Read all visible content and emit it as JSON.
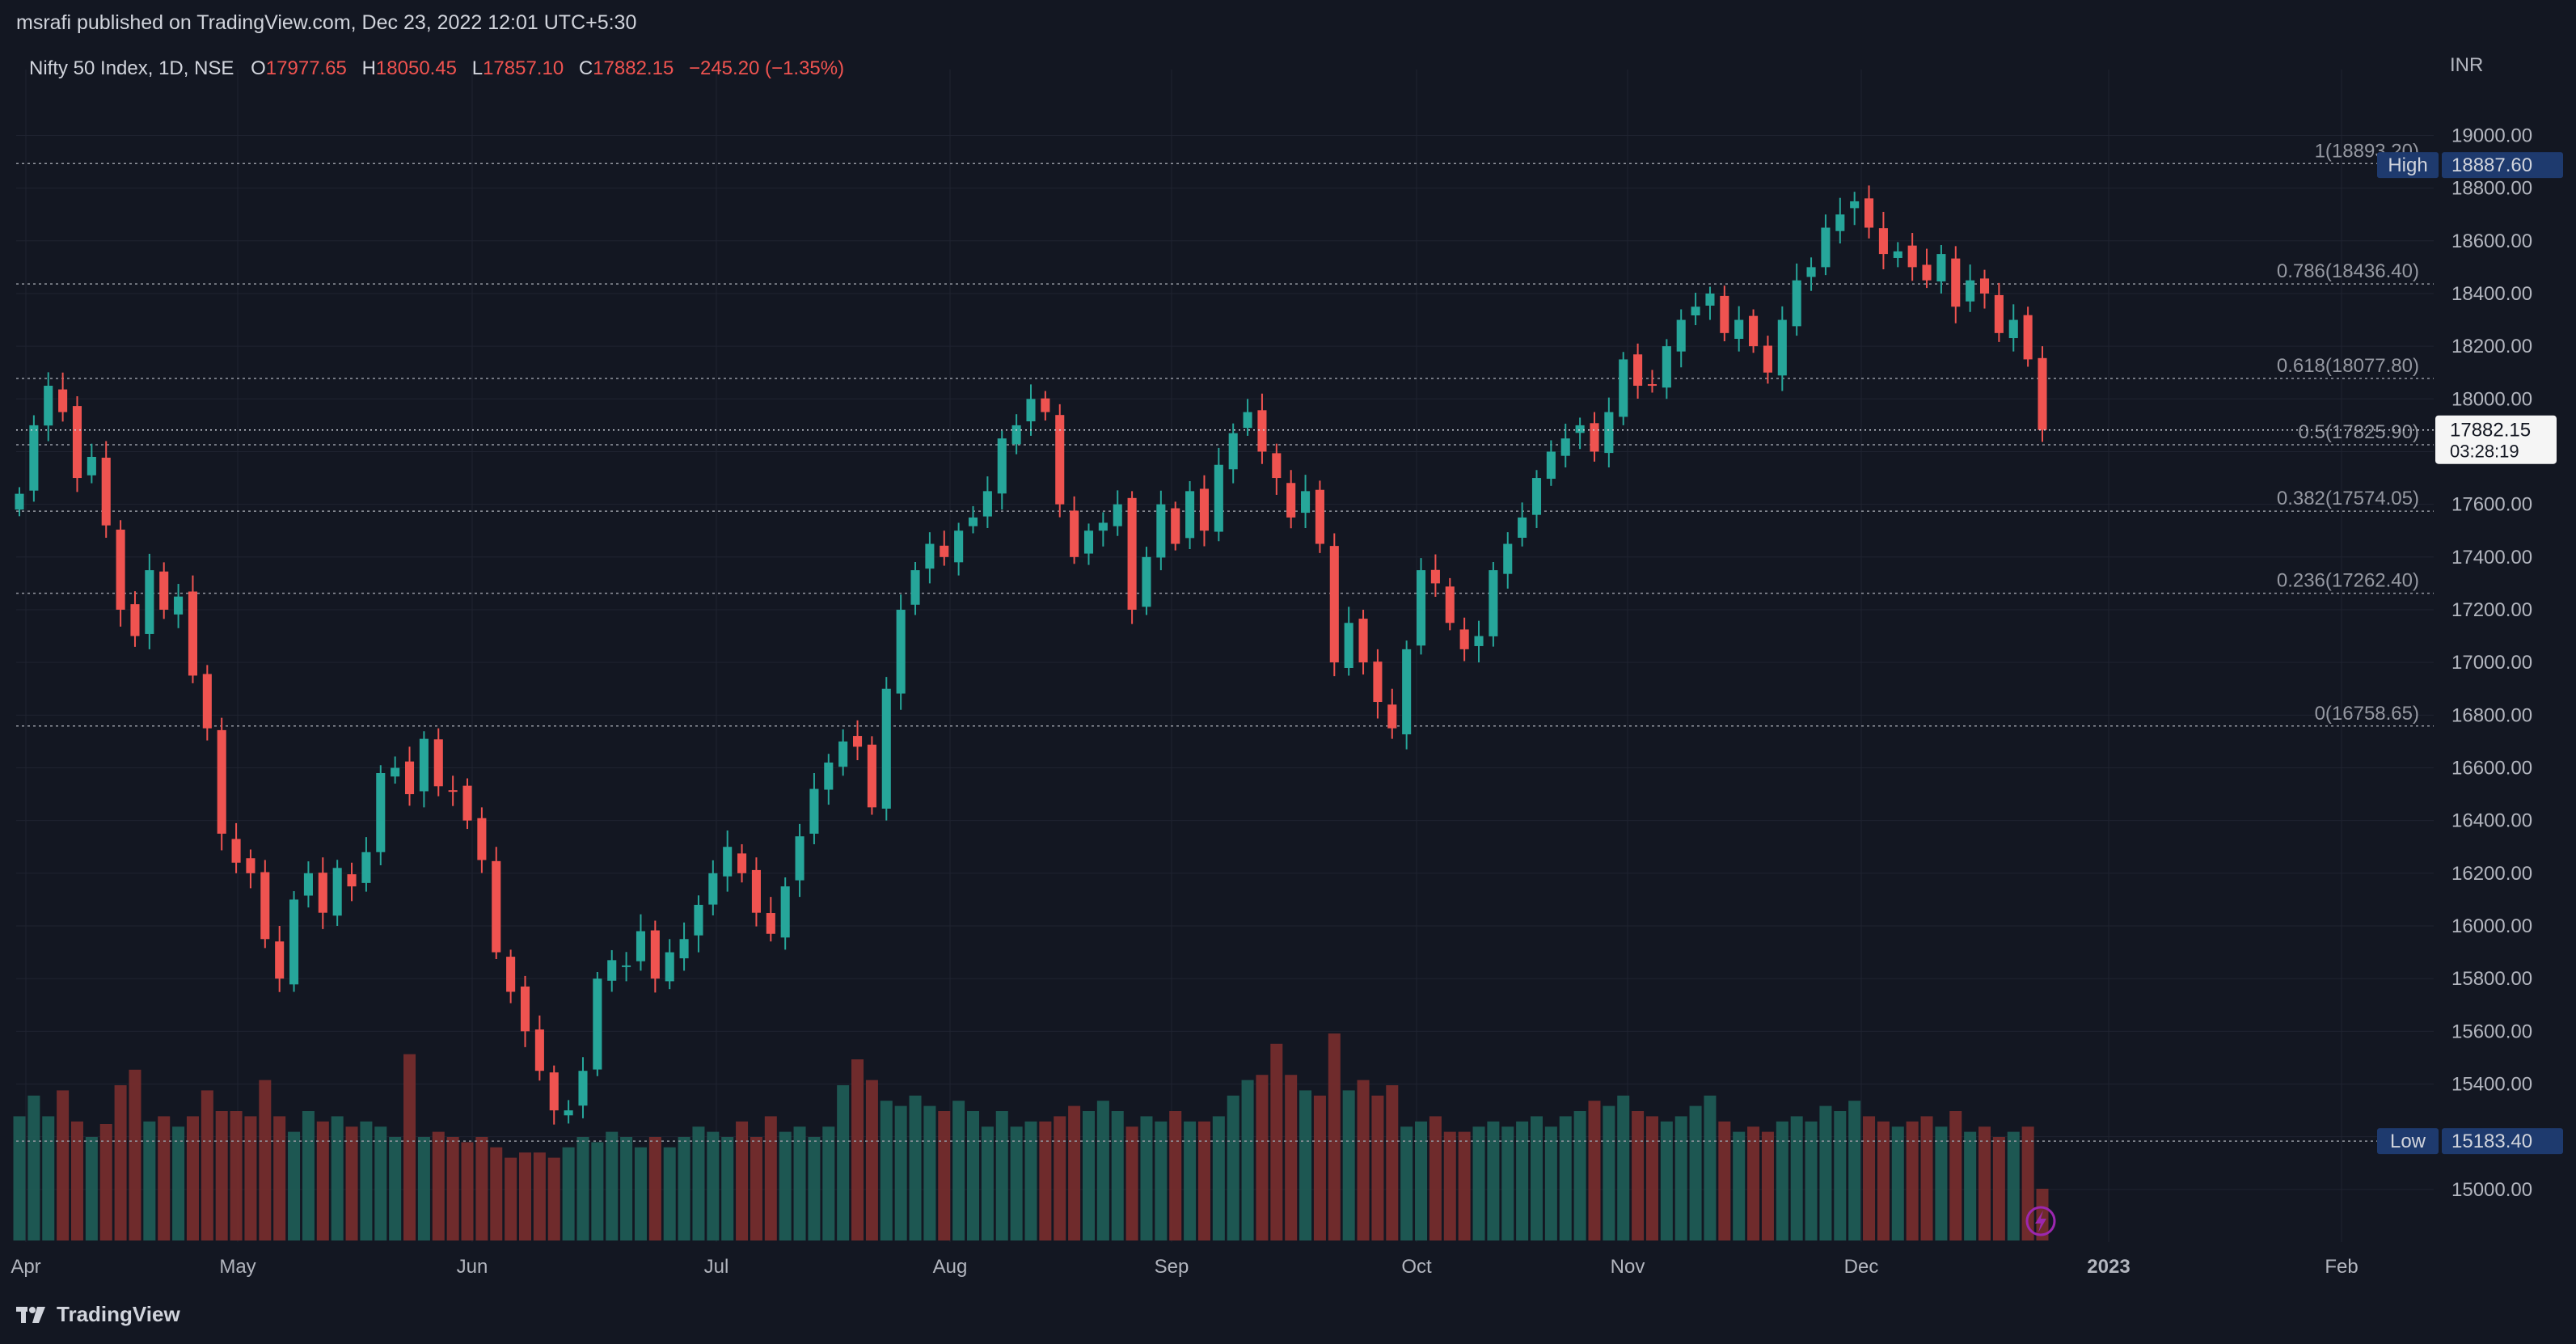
{
  "header": {
    "published_text": "msrafi published on TradingView.com, Dec 23, 2022 12:01 UTC+5:30"
  },
  "legend": {
    "symbol": "Nifty 50 Index, 1D, NSE",
    "o_label": "O",
    "o_value": "17977.65",
    "h_label": "H",
    "h_value": "18050.45",
    "l_label": "L",
    "l_value": "17857.10",
    "c_label": "C",
    "c_value": "17882.15",
    "change": "−245.20 (−1.35%)"
  },
  "currency": "INR",
  "footer": {
    "brand": "TradingView"
  },
  "colors": {
    "background": "#131722",
    "grid": "#1f2330",
    "up": "#26a69a",
    "down": "#ef5350",
    "text": "#d1d4dc",
    "axis_text": "#b2b5be",
    "fib_line": "#9598a1",
    "badge_blue": "#1e3a8a"
  },
  "chart_data": {
    "type": "candlestick",
    "title": "Nifty 50 Index, 1D, NSE",
    "y_axis": {
      "min": 14800,
      "max": 19250,
      "ticks": [
        "19000.00",
        "18800.00",
        "18600.00",
        "18400.00",
        "18200.00",
        "18000.00",
        "17800.00",
        "17600.00",
        "17400.00",
        "17200.00",
        "17000.00",
        "16800.00",
        "16600.00",
        "16400.00",
        "16200.00",
        "16000.00",
        "15800.00",
        "15600.00",
        "15400.00",
        "15200.00",
        "15000.00"
      ]
    },
    "x_axis": {
      "labels": [
        "Apr",
        "May",
        "Jun",
        "Jul",
        "Aug",
        "Sep",
        "Oct",
        "Nov",
        "Dec",
        "2023",
        "Feb"
      ]
    },
    "last_price": {
      "value": "17882.15",
      "countdown": "03:28:19"
    },
    "high_marker": {
      "label": "High",
      "value": "18887.60"
    },
    "low_marker": {
      "label": "Low",
      "value": "15183.40"
    },
    "fib_levels": [
      {
        "ratio": "1",
        "value": 18893.2,
        "text": "1(18893.20)"
      },
      {
        "ratio": "0.786",
        "value": 18436.4,
        "text": "0.786(18436.40)"
      },
      {
        "ratio": "0.618",
        "value": 18077.8,
        "text": "0.618(18077.80)"
      },
      {
        "ratio": "0.5",
        "value": 17825.9,
        "text": "0.5(17825.90)"
      },
      {
        "ratio": "0.382",
        "value": 17574.05,
        "text": "0.382(17574.05)"
      },
      {
        "ratio": "0.236",
        "value": 17262.4,
        "text": "0.236(17262.40)"
      },
      {
        "ratio": "0",
        "value": 16758.65,
        "text": "0(16758.65)"
      }
    ],
    "closes": [
      17640,
      17900,
      18050,
      17950,
      17700,
      17780,
      17520,
      17200,
      17100,
      17350,
      17200,
      17250,
      16950,
      16750,
      16350,
      16240,
      16200,
      15950,
      15800,
      16100,
      16200,
      16050,
      16220,
      16150,
      16280,
      16580,
      16600,
      16500,
      16710,
      16530,
      16510,
      16400,
      16250,
      15900,
      15750,
      15600,
      15450,
      15300,
      15300,
      15450,
      15800,
      15870,
      15850,
      15980,
      15800,
      15900,
      15950,
      16080,
      16200,
      16300,
      16200,
      16050,
      15970,
      16150,
      16340,
      16520,
      16620,
      16700,
      16680,
      16450,
      16900,
      17200,
      17350,
      17450,
      17400,
      17500,
      17550,
      17650,
      17850,
      17900,
      18000,
      17950,
      17600,
      17400,
      17500,
      17530,
      17600,
      17200,
      17400,
      17600,
      17450,
      17650,
      17500,
      17750,
      17870,
      17950,
      17800,
      17700,
      17550,
      17650,
      17450,
      17000,
      17150,
      17000,
      16850,
      16750,
      17050,
      17350,
      17300,
      17150,
      17050,
      17100,
      17350,
      17450,
      17550,
      17700,
      17800,
      17850,
      17900,
      17800,
      17950,
      18150,
      18050,
      18050,
      18200,
      18300,
      18350,
      18400,
      18250,
      18300,
      18200,
      18100,
      18300,
      18450,
      18500,
      18650,
      18700,
      18750,
      18650,
      18550,
      18560,
      18500,
      18450,
      18550,
      18350,
      18450,
      18400,
      18250,
      18300,
      18150,
      17882
    ],
    "volumes": [
      0.48,
      0.56,
      0.48,
      0.58,
      0.46,
      0.4,
      0.45,
      0.6,
      0.66,
      0.46,
      0.48,
      0.44,
      0.48,
      0.58,
      0.5,
      0.5,
      0.48,
      0.62,
      0.48,
      0.42,
      0.5,
      0.46,
      0.48,
      0.44,
      0.46,
      0.44,
      0.4,
      0.72,
      0.4,
      0.42,
      0.4,
      0.38,
      0.4,
      0.36,
      0.32,
      0.34,
      0.34,
      0.32,
      0.36,
      0.4,
      0.38,
      0.42,
      0.4,
      0.36,
      0.4,
      0.36,
      0.4,
      0.44,
      0.42,
      0.4,
      0.46,
      0.4,
      0.48,
      0.42,
      0.44,
      0.4,
      0.44,
      0.6,
      0.7,
      0.62,
      0.54,
      0.52,
      0.56,
      0.52,
      0.5,
      0.54,
      0.5,
      0.44,
      0.5,
      0.44,
      0.46,
      0.46,
      0.48,
      0.52,
      0.5,
      0.54,
      0.5,
      0.44,
      0.48,
      0.46,
      0.5,
      0.46,
      0.46,
      0.48,
      0.56,
      0.62,
      0.64,
      0.76,
      0.64,
      0.58,
      0.56,
      0.8,
      0.58,
      0.62,
      0.56,
      0.6,
      0.44,
      0.46,
      0.48,
      0.42,
      0.42,
      0.44,
      0.46,
      0.44,
      0.46,
      0.48,
      0.44,
      0.48,
      0.5,
      0.54,
      0.52,
      0.56,
      0.5,
      0.48,
      0.46,
      0.48,
      0.52,
      0.56,
      0.46,
      0.42,
      0.44,
      0.42,
      0.46,
      0.48,
      0.46,
      0.52,
      0.5,
      0.54,
      0.48,
      0.46,
      0.44,
      0.46,
      0.48,
      0.44,
      0.5,
      0.42,
      0.44,
      0.4,
      0.42,
      0.44,
      0.2
    ]
  }
}
